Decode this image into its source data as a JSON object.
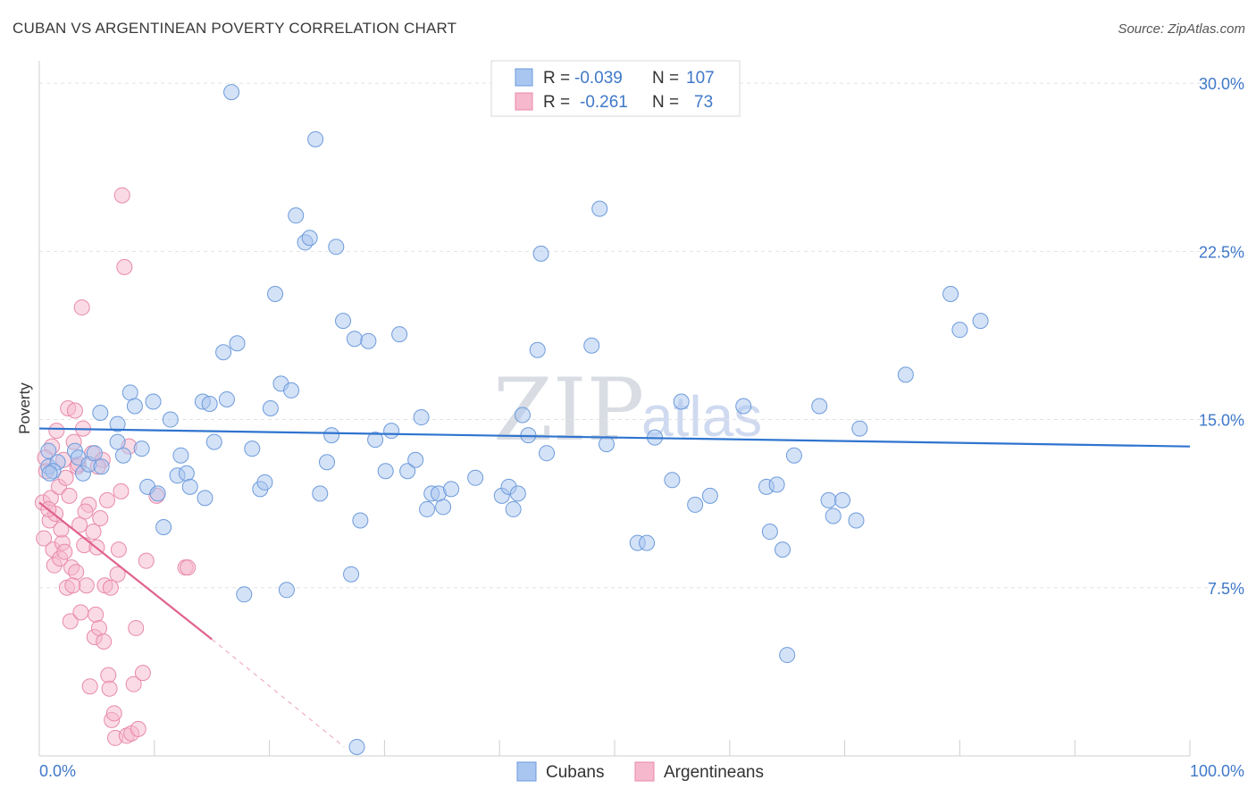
{
  "title": "CUBAN VS ARGENTINEAN POVERTY CORRELATION CHART",
  "source": "Source: ZipAtlas.com",
  "watermark": {
    "zip": "ZIP",
    "atlas": "atlas"
  },
  "colors": {
    "cubans_fill": "#a9c6f0",
    "cubans_stroke": "#6d9bdc",
    "cubans_line": "#2f74cf",
    "argentineans_fill": "#f6b8cc",
    "argentineans_stroke": "#e88aa9",
    "argentineans_line": "#e0628e",
    "tick_text": "#3f78c9",
    "grid": "#e2e2e2"
  },
  "legend": {
    "rows": [
      {
        "r_label": "R =",
        "r_value": "-0.039",
        "n_label": "N =",
        "n_value": "107"
      },
      {
        "r_label": "R =",
        "r_value": "-0.261",
        "n_label": "N =",
        "n_value": "73"
      }
    ]
  },
  "bottom_legend": [
    "Cubans",
    "Argentineans"
  ],
  "chart_data": {
    "type": "scatter",
    "title": "CUBAN VS ARGENTINEAN POVERTY CORRELATION CHART",
    "xlabel": "",
    "ylabel": "Poverty",
    "xlim": [
      0,
      100
    ],
    "ylim": [
      0,
      31
    ],
    "x_tick_labels": [
      "0.0%",
      "100.0%"
    ],
    "y_ticks": [
      7.5,
      15.0,
      22.5,
      30.0
    ],
    "y_tick_labels": [
      "7.5%",
      "15.0%",
      "22.5%",
      "30.0%"
    ],
    "grid": true,
    "series": [
      {
        "name": "Cubans",
        "trend": {
          "x": [
            0,
            100
          ],
          "y": [
            14.6,
            13.8
          ]
        },
        "points": [
          [
            0.8,
            13.6
          ],
          [
            0.8,
            12.9
          ],
          [
            1.6,
            13.1
          ],
          [
            1.2,
            12.7
          ],
          [
            3.1,
            13.6
          ],
          [
            3.4,
            13.3
          ],
          [
            3.8,
            12.6
          ],
          [
            4.3,
            13.0
          ],
          [
            4.8,
            13.5
          ],
          [
            5.4,
            12.9
          ],
          [
            5.3,
            15.3
          ],
          [
            6.8,
            14.8
          ],
          [
            6.8,
            14.0
          ],
          [
            7.3,
            13.4
          ],
          [
            7.9,
            16.2
          ],
          [
            8.3,
            15.6
          ],
          [
            8.9,
            13.7
          ],
          [
            9.4,
            12.0
          ],
          [
            9.9,
            15.8
          ],
          [
            10.3,
            11.7
          ],
          [
            10.8,
            10.2
          ],
          [
            11.4,
            15.0
          ],
          [
            12.0,
            12.5
          ],
          [
            12.3,
            13.4
          ],
          [
            12.8,
            12.6
          ],
          [
            13.1,
            12.0
          ],
          [
            14.2,
            15.8
          ],
          [
            14.4,
            11.5
          ],
          [
            14.8,
            15.7
          ],
          [
            15.2,
            14.0
          ],
          [
            16.0,
            18.0
          ],
          [
            16.3,
            15.9
          ],
          [
            16.7,
            29.6
          ],
          [
            17.2,
            18.4
          ],
          [
            17.8,
            7.2
          ],
          [
            18.5,
            13.7
          ],
          [
            19.2,
            11.9
          ],
          [
            19.6,
            12.2
          ],
          [
            20.1,
            15.5
          ],
          [
            20.5,
            20.6
          ],
          [
            21.0,
            16.6
          ],
          [
            21.5,
            7.4
          ],
          [
            21.9,
            16.3
          ],
          [
            22.3,
            24.1
          ],
          [
            23.1,
            22.9
          ],
          [
            23.5,
            23.1
          ],
          [
            24.0,
            27.5
          ],
          [
            24.4,
            11.7
          ],
          [
            25.0,
            13.1
          ],
          [
            25.4,
            14.3
          ],
          [
            25.8,
            22.7
          ],
          [
            26.4,
            19.4
          ],
          [
            27.1,
            8.1
          ],
          [
            27.4,
            18.6
          ],
          [
            27.9,
            10.5
          ],
          [
            28.6,
            18.5
          ],
          [
            29.2,
            14.1
          ],
          [
            30.1,
            12.7
          ],
          [
            30.6,
            14.5
          ],
          [
            31.3,
            18.8
          ],
          [
            32.0,
            12.7
          ],
          [
            32.7,
            13.2
          ],
          [
            33.2,
            15.1
          ],
          [
            33.7,
            11.0
          ],
          [
            34.1,
            11.7
          ],
          [
            34.7,
            11.7
          ],
          [
            35.1,
            11.1
          ],
          [
            35.8,
            11.9
          ],
          [
            37.9,
            12.4
          ],
          [
            40.2,
            11.6
          ],
          [
            40.8,
            12.0
          ],
          [
            41.2,
            11.0
          ],
          [
            41.6,
            11.7
          ],
          [
            42.0,
            15.2
          ],
          [
            42.5,
            14.3
          ],
          [
            43.3,
            18.1
          ],
          [
            43.6,
            22.4
          ],
          [
            44.1,
            13.5
          ],
          [
            48.0,
            18.3
          ],
          [
            48.7,
            24.4
          ],
          [
            49.3,
            13.9
          ],
          [
            52.0,
            9.5
          ],
          [
            52.8,
            9.5
          ],
          [
            53.5,
            14.2
          ],
          [
            55.0,
            12.3
          ],
          [
            55.8,
            15.8
          ],
          [
            57.0,
            11.2
          ],
          [
            58.3,
            11.6
          ],
          [
            61.2,
            15.6
          ],
          [
            63.2,
            12.0
          ],
          [
            63.5,
            10.0
          ],
          [
            64.1,
            12.1
          ],
          [
            64.6,
            9.2
          ],
          [
            65.6,
            13.4
          ],
          [
            65.0,
            4.5
          ],
          [
            67.8,
            15.6
          ],
          [
            68.6,
            11.4
          ],
          [
            69.0,
            10.7
          ],
          [
            69.8,
            11.4
          ],
          [
            71.0,
            10.5
          ],
          [
            71.3,
            14.6
          ],
          [
            75.3,
            17.0
          ],
          [
            79.2,
            20.6
          ],
          [
            80.0,
            19.0
          ],
          [
            81.8,
            19.4
          ],
          [
            27.6,
            0.4
          ],
          [
            0.9,
            12.6
          ]
        ]
      },
      {
        "name": "Argentineans",
        "trend": {
          "x": [
            0,
            15
          ],
          "y": [
            11.3,
            5.2
          ]
        },
        "trend_extension": {
          "x": [
            15,
            26.5
          ],
          "y": [
            5.2,
            0.4
          ]
        },
        "points": [
          [
            0.3,
            11.3
          ],
          [
            0.4,
            9.7
          ],
          [
            0.6,
            12.7
          ],
          [
            0.9,
            10.5
          ],
          [
            1.0,
            11.5
          ],
          [
            1.2,
            9.2
          ],
          [
            1.3,
            8.5
          ],
          [
            1.4,
            10.8
          ],
          [
            1.5,
            14.5
          ],
          [
            1.7,
            12.0
          ],
          [
            1.8,
            8.8
          ],
          [
            2.0,
            9.5
          ],
          [
            2.1,
            13.2
          ],
          [
            2.3,
            12.4
          ],
          [
            2.4,
            7.5
          ],
          [
            2.5,
            15.5
          ],
          [
            2.6,
            11.6
          ],
          [
            2.7,
            6.0
          ],
          [
            2.8,
            8.4
          ],
          [
            3.0,
            14.0
          ],
          [
            3.1,
            15.4
          ],
          [
            3.2,
            8.2
          ],
          [
            3.3,
            12.9
          ],
          [
            3.5,
            10.3
          ],
          [
            3.6,
            6.4
          ],
          [
            3.8,
            14.6
          ],
          [
            3.9,
            9.4
          ],
          [
            4.1,
            7.6
          ],
          [
            4.3,
            11.2
          ],
          [
            4.4,
            3.1
          ],
          [
            4.6,
            13.5
          ],
          [
            4.7,
            10.0
          ],
          [
            4.8,
            5.3
          ],
          [
            4.9,
            6.3
          ],
          [
            5.0,
            9.3
          ],
          [
            5.2,
            5.7
          ],
          [
            5.3,
            10.6
          ],
          [
            5.5,
            13.2
          ],
          [
            5.6,
            5.1
          ],
          [
            5.7,
            7.6
          ],
          [
            5.9,
            11.4
          ],
          [
            6.0,
            3.6
          ],
          [
            6.1,
            3.0
          ],
          [
            6.3,
            1.6
          ],
          [
            6.5,
            1.9
          ],
          [
            6.6,
            0.8
          ],
          [
            6.8,
            8.1
          ],
          [
            6.9,
            9.2
          ],
          [
            7.1,
            11.8
          ],
          [
            7.2,
            25.0
          ],
          [
            7.4,
            21.8
          ],
          [
            7.6,
            0.9
          ],
          [
            7.8,
            13.8
          ],
          [
            8.0,
            1.0
          ],
          [
            8.2,
            3.2
          ],
          [
            8.4,
            5.7
          ],
          [
            8.6,
            1.2
          ],
          [
            9.0,
            3.7
          ],
          [
            9.3,
            8.7
          ],
          [
            10.2,
            11.6
          ],
          [
            12.7,
            8.4
          ],
          [
            12.9,
            8.4
          ],
          [
            3.7,
            20.0
          ],
          [
            1.9,
            10.1
          ],
          [
            0.8,
            11.0
          ],
          [
            2.2,
            9.1
          ],
          [
            1.1,
            13.8
          ],
          [
            3.4,
            13.0
          ],
          [
            0.5,
            13.3
          ],
          [
            2.9,
            7.6
          ],
          [
            5.1,
            12.9
          ],
          [
            6.2,
            7.5
          ],
          [
            4.0,
            10.9
          ]
        ]
      }
    ]
  }
}
